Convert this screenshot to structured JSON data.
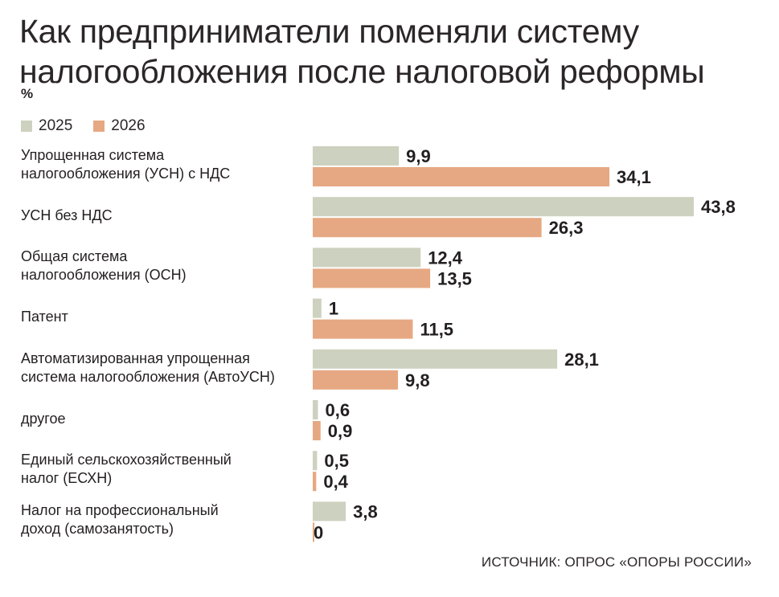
{
  "chart_data": {
    "type": "bar",
    "orientation": "horizontal",
    "title_line1": "Как предприниматели поменяли систему",
    "title_line2": "налогообложения после налоговой реформы",
    "unit": "%",
    "categories": [
      [
        "Упрощенная система",
        "налогообложения (УСН) с НДС"
      ],
      [
        "УСН без НДС"
      ],
      [
        "Общая система",
        "налогообложения (ОСН)"
      ],
      [
        "Патент"
      ],
      [
        "Автоматизированная упрощенная",
        "система налогообложения (АвтоУСН)"
      ],
      [
        "другое"
      ],
      [
        "Единый сельскохозяйственный",
        "налог (ЕСХН)"
      ],
      [
        "Налог на профессиональный",
        "доход (самозанятость)"
      ]
    ],
    "series": [
      {
        "name": "2025",
        "color": "#cdd1bf",
        "values": [
          9.9,
          43.8,
          12.4,
          1,
          28.1,
          0.6,
          0.5,
          3.8
        ],
        "labels": [
          "9,9",
          "43,8",
          "12,4",
          "1",
          "28,1",
          "0,6",
          "0,5",
          "3,8"
        ]
      },
      {
        "name": "2026",
        "color": "#e6a882",
        "values": [
          34.1,
          26.3,
          13.5,
          11.5,
          9.8,
          0.9,
          0.4,
          0
        ],
        "labels": [
          "34,1",
          "26,3",
          "13,5",
          "11,5",
          "9,8",
          "0,9",
          "0,4",
          "0"
        ]
      }
    ],
    "xlim": [
      0,
      43.8
    ],
    "source": "ИСТОЧНИК: ОПРОС «ОПОРЫ РОССИИ»"
  }
}
